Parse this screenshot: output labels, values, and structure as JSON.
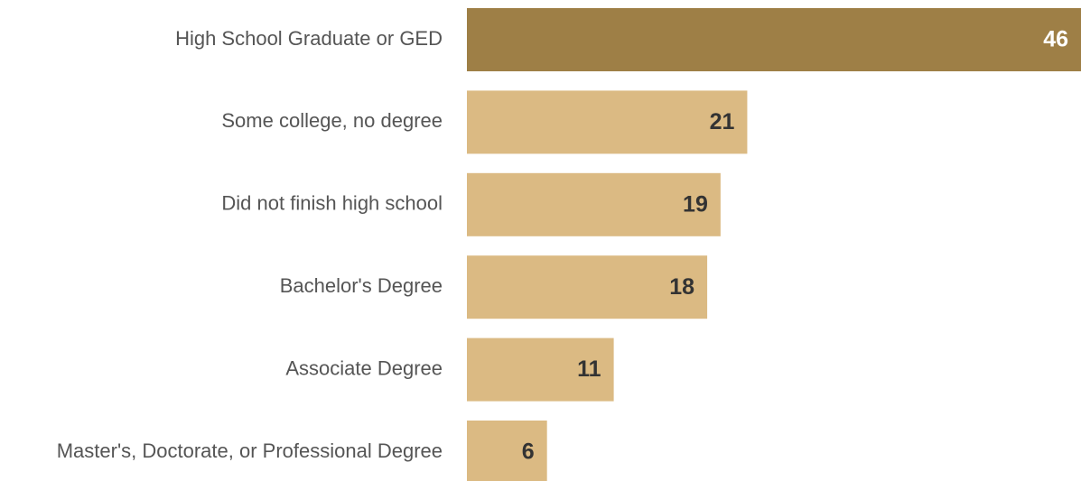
{
  "chart_data": {
    "type": "hbar",
    "categories": [
      "High School Graduate or GED",
      "Some college, no degree",
      "Did not finish high school",
      "Bachelor's Degree",
      "Associate Degree",
      "Master's, Doctorate, or Professional Degree"
    ],
    "values": [
      46,
      21,
      19,
      18,
      11,
      6
    ],
    "colors": [
      "#9e7f46",
      "#dbba83",
      "#dbba83",
      "#dbba83",
      "#dbba83",
      "#dbba83"
    ],
    "value_label_colors": [
      "#ffffff",
      "#333333",
      "#333333",
      "#333333",
      "#333333",
      "#333333"
    ]
  }
}
